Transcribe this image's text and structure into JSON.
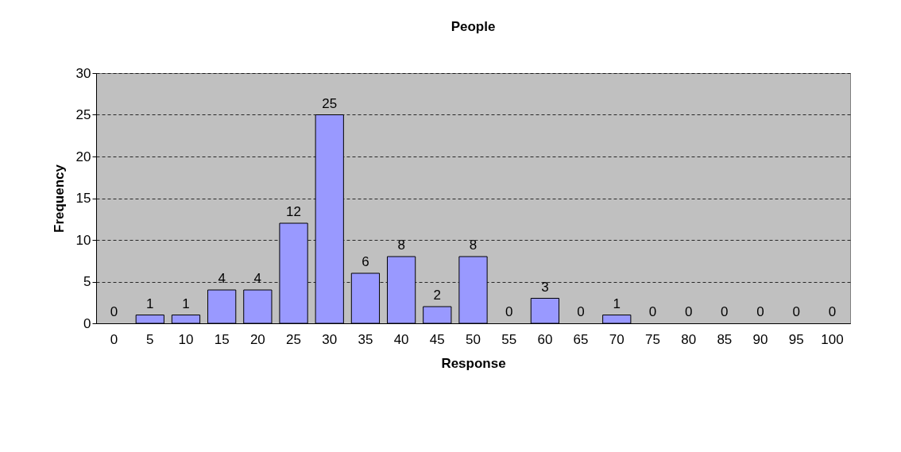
{
  "chart_data": {
    "type": "bar",
    "title": "People",
    "xlabel": "Response",
    "ylabel": "Frequency",
    "categories": [
      "0",
      "5",
      "10",
      "15",
      "20",
      "25",
      "30",
      "35",
      "40",
      "45",
      "50",
      "55",
      "60",
      "65",
      "70",
      "75",
      "80",
      "85",
      "90",
      "95",
      "100"
    ],
    "values": [
      0,
      1,
      1,
      4,
      4,
      12,
      25,
      6,
      8,
      2,
      8,
      0,
      3,
      0,
      1,
      0,
      0,
      0,
      0,
      0,
      0
    ],
    "color": "#9999ff",
    "ylim": [
      0,
      30
    ],
    "yticks": [
      0,
      5,
      10,
      15,
      20,
      25,
      30
    ],
    "grid": "y",
    "data_labels": true
  }
}
